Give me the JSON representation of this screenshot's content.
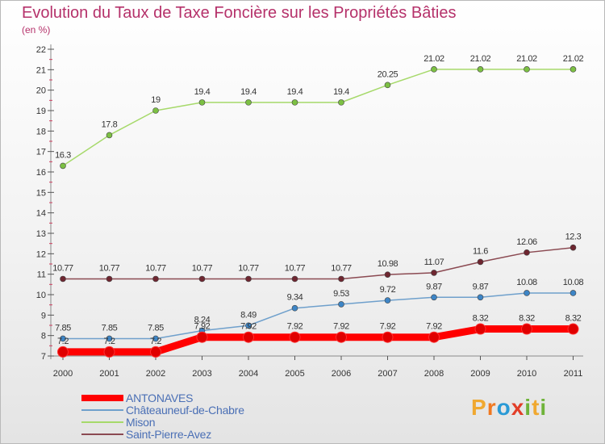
{
  "title": "Evolution du Taux de Taxe Foncière sur les Propriétés Bâties",
  "unit": "(en %)",
  "brand": {
    "letters": [
      "P",
      "r",
      "o",
      "x",
      "i",
      "t",
      "i"
    ],
    "colors": [
      "#f0a830",
      "#f07820",
      "#2a9ad6",
      "#e23e28",
      "#6fb33a",
      "#f0a830",
      "#6fb33a"
    ]
  },
  "chart_data": {
    "type": "line",
    "x": [
      "2000",
      "2001",
      "2002",
      "2003",
      "2004",
      "2005",
      "2006",
      "2007",
      "2008",
      "2009",
      "2010",
      "2011"
    ],
    "ylim": [
      7,
      22
    ],
    "yticks": [
      "7",
      "8",
      "9",
      "10",
      "11",
      "12",
      "13",
      "14",
      "15",
      "16",
      "17",
      "18",
      "19",
      "20",
      "21",
      "22"
    ],
    "grid": false,
    "legend_position": "bottom-left",
    "series": [
      {
        "name": "ANTONAVES",
        "color": "#ff0000",
        "marker": "#e00000",
        "values": [
          7.2,
          7.2,
          7.2,
          7.92,
          7.92,
          7.92,
          7.92,
          7.92,
          7.92,
          8.32,
          8.32,
          8.32
        ],
        "labels": [
          "7.2",
          "7.2",
          "7.2",
          "7.92",
          "7.92",
          "7.92",
          "7.92",
          "7.92",
          "7.92",
          "8.32",
          "8.32",
          "8.32"
        ]
      },
      {
        "name": "Châteauneuf-de-Chabre",
        "color": "#6fa0cc",
        "marker": "#3d85c6",
        "values": [
          7.85,
          7.85,
          7.85,
          8.24,
          8.49,
          9.34,
          9.53,
          9.72,
          9.87,
          9.87,
          10.08,
          10.08
        ],
        "labels": [
          "7.85",
          "7.85",
          "7.85",
          "8.24",
          "8.49",
          "9.34",
          "9.53",
          "9.72",
          "9.87",
          "9.87",
          "10.08",
          "10.08"
        ]
      },
      {
        "name": "Mison",
        "color": "#a6d96a",
        "marker": "#7cc043",
        "values": [
          16.3,
          17.8,
          19,
          19.4,
          19.4,
          19.4,
          19.4,
          20.25,
          21.02,
          21.02,
          21.02,
          21.02
        ],
        "labels": [
          "16.3",
          "17.8",
          "19",
          "19.4",
          "19.4",
          "19.4",
          "19.4",
          "20.25",
          "21.02",
          "21.02",
          "21.02",
          "21.02"
        ]
      },
      {
        "name": "Saint-Pierre-Avez",
        "color": "#8b4a52",
        "marker": "#6e2630",
        "values": [
          10.77,
          10.77,
          10.77,
          10.77,
          10.77,
          10.77,
          10.77,
          10.98,
          11.07,
          11.6,
          12.06,
          12.3
        ],
        "labels": [
          "10.77",
          "10.77",
          "10.77",
          "10.77",
          "10.77",
          "10.77",
          "10.77",
          "10.98",
          "11.07",
          "11.6",
          "12.06",
          "12.3"
        ]
      }
    ]
  }
}
